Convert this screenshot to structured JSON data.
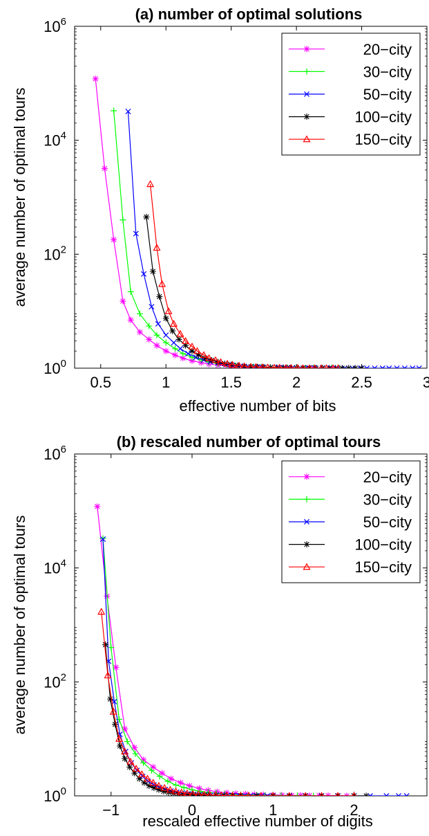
{
  "chart_data": [
    {
      "type": "line",
      "title": "(a) number of optimal solutions",
      "xlabel": "effective number of bits",
      "ylabel": "average number of optimal tours",
      "xlim": [
        0.3,
        3.0
      ],
      "ylim": [
        1,
        1000000
      ],
      "yscale": "log",
      "xticks": [
        "0.5",
        "1",
        "1.5",
        "2",
        "2.5",
        "3"
      ],
      "xtick_values": [
        0.5,
        1,
        1.5,
        2,
        2.5,
        3
      ],
      "yticks": [
        {
          "base": "10",
          "exp": "0",
          "value": 1
        },
        {
          "base": "10",
          "exp": "2",
          "value": 100
        },
        {
          "base": "10",
          "exp": "4",
          "value": 10000
        },
        {
          "base": "10",
          "exp": "6",
          "value": 1000000
        }
      ],
      "legend_position": "top-right",
      "series": [
        {
          "name": "20−city",
          "color": "#ff00ff",
          "marker": "asterisk",
          "x": [
            0.46,
            0.53,
            0.6,
            0.67,
            0.73,
            0.8,
            0.87,
            0.93,
            1.0,
            1.07,
            1.13,
            1.2,
            1.27,
            1.33,
            1.4,
            1.47,
            1.53,
            1.6,
            1.67,
            1.73,
            1.8,
            1.87,
            1.93,
            2.0,
            2.07,
            2.13,
            2.2,
            2.27
          ],
          "y": [
            120000,
            3200,
            180,
            15,
            7,
            4.3,
            3.2,
            2.5,
            2.0,
            1.7,
            1.5,
            1.35,
            1.25,
            1.18,
            1.13,
            1.1,
            1.08,
            1.06,
            1.05,
            1.04,
            1.03,
            1.02,
            1.02,
            1.01,
            1.01,
            1.01,
            1.01,
            1.0
          ]
        },
        {
          "name": "30−city",
          "color": "#00ff00",
          "marker": "plus",
          "x": [
            0.6,
            0.67,
            0.73,
            0.8,
            0.87,
            0.93,
            1.0,
            1.07,
            1.13,
            1.2,
            1.27,
            1.33,
            1.4,
            1.47,
            1.53,
            1.6,
            1.67,
            1.73,
            1.8,
            1.87,
            1.93,
            2.0,
            2.07,
            2.13,
            2.2,
            2.27,
            2.33
          ],
          "y": [
            33000,
            400,
            22,
            9,
            5.5,
            3.8,
            2.8,
            2.2,
            1.8,
            1.55,
            1.4,
            1.28,
            1.2,
            1.15,
            1.11,
            1.08,
            1.06,
            1.05,
            1.04,
            1.03,
            1.02,
            1.02,
            1.01,
            1.01,
            1.01,
            1.01,
            1.0
          ]
        },
        {
          "name": "50−city",
          "color": "#0000ff",
          "marker": "x",
          "x": [
            0.71,
            0.77,
            0.83,
            0.89,
            0.94,
            1.0,
            1.06,
            1.11,
            1.17,
            1.23,
            1.29,
            1.34,
            1.4,
            1.46,
            1.51,
            1.57,
            1.63,
            1.69,
            1.74,
            1.8,
            1.86,
            1.91,
            1.97,
            2.03,
            2.09,
            2.14,
            2.2,
            2.26,
            2.31,
            2.37,
            2.43,
            2.49,
            2.54,
            2.6,
            2.66,
            2.71,
            2.77,
            2.83,
            2.89,
            2.94
          ],
          "y": [
            32000,
            230,
            45,
            12,
            6,
            3.8,
            2.8,
            2.2,
            1.8,
            1.55,
            1.4,
            1.3,
            1.22,
            1.16,
            1.12,
            1.09,
            1.07,
            1.05,
            1.04,
            1.03,
            1.03,
            1.02,
            1.02,
            1.01,
            1.01,
            1.01,
            1.01,
            1.0,
            1.0,
            1.0,
            1.0,
            1.0,
            1.0,
            1.0,
            1.0,
            1.0,
            1.0,
            1.0,
            1.0,
            1.0
          ]
        },
        {
          "name": "100−city",
          "color": "#000000",
          "marker": "asterisk",
          "x": [
            0.85,
            0.9,
            0.95,
            1.0,
            1.05,
            1.1,
            1.15,
            1.2,
            1.25,
            1.3,
            1.35,
            1.4,
            1.45,
            1.5,
            1.55,
            1.6,
            1.65,
            1.7,
            1.75,
            1.8,
            1.85,
            1.9,
            1.95,
            2.0,
            2.05,
            2.1,
            2.15,
            2.2,
            2.25,
            2.3,
            2.35,
            2.4,
            2.45,
            2.5
          ],
          "y": [
            450,
            50,
            18,
            7.5,
            4.5,
            3.2,
            2.5,
            2.0,
            1.7,
            1.5,
            1.38,
            1.28,
            1.2,
            1.15,
            1.11,
            1.08,
            1.06,
            1.05,
            1.04,
            1.03,
            1.02,
            1.02,
            1.01,
            1.01,
            1.01,
            1.01,
            1.0,
            1.0,
            1.0,
            1.0,
            1.0,
            1.0,
            1.0,
            1.0
          ]
        },
        {
          "name": "150−city",
          "color": "#ff0000",
          "marker": "triangle",
          "x": [
            0.88,
            0.93,
            0.97,
            1.02,
            1.06,
            1.11,
            1.15,
            1.2,
            1.24,
            1.29,
            1.33,
            1.38,
            1.42,
            1.47,
            1.51,
            1.56,
            1.6,
            1.65,
            1.69,
            1.74,
            1.78,
            1.83,
            1.87,
            1.92,
            1.96,
            2.01,
            2.05,
            2.1,
            2.14,
            2.19,
            2.23,
            2.28,
            2.32
          ],
          "y": [
            1700,
            130,
            30,
            10,
            6,
            4,
            3,
            2.4,
            2,
            1.7,
            1.5,
            1.38,
            1.28,
            1.2,
            1.15,
            1.11,
            1.08,
            1.06,
            1.05,
            1.04,
            1.03,
            1.02,
            1.02,
            1.01,
            1.01,
            1.01,
            1.0,
            1.0,
            1.0,
            1.0,
            1.0,
            1.0,
            1.0
          ]
        }
      ]
    },
    {
      "type": "line",
      "title": "(b) rescaled number of optimal tours",
      "xlabel": "rescaled effective number of digits",
      "ylabel": "average number of optimal tours",
      "xlim": [
        -1.45,
        2.9
      ],
      "ylim": [
        1,
        1000000
      ],
      "yscale": "log",
      "xticks": [
        "−1",
        "0",
        "1",
        "2"
      ],
      "xtick_values": [
        -1,
        0,
        1,
        2
      ],
      "yticks": [
        {
          "base": "10",
          "exp": "0",
          "value": 1
        },
        {
          "base": "10",
          "exp": "2",
          "value": 100
        },
        {
          "base": "10",
          "exp": "4",
          "value": 10000
        },
        {
          "base": "10",
          "exp": "6",
          "value": 1000000
        }
      ],
      "legend_position": "top-right",
      "series": [
        {
          "name": "20−city",
          "color": "#ff00ff",
          "marker": "asterisk",
          "x": [
            -1.17,
            -1.05,
            -0.94,
            -0.83,
            -0.71,
            -0.6,
            -0.48,
            -0.37,
            -0.26,
            -0.14,
            -0.03,
            0.09,
            0.2,
            0.31,
            0.43,
            0.54,
            0.66,
            0.77,
            0.88,
            1.0,
            1.11,
            1.23,
            1.34,
            1.45,
            1.57,
            1.68,
            1.8,
            1.91
          ],
          "y": [
            120000,
            3200,
            180,
            15,
            7,
            4.3,
            3.2,
            2.5,
            2.0,
            1.7,
            1.5,
            1.35,
            1.25,
            1.18,
            1.13,
            1.1,
            1.08,
            1.06,
            1.05,
            1.04,
            1.03,
            1.02,
            1.02,
            1.01,
            1.01,
            1.01,
            1.01,
            1.0
          ]
        },
        {
          "name": "30−city",
          "color": "#00ff00",
          "marker": "plus",
          "x": [
            -1.1,
            -1.0,
            -0.9,
            -0.8,
            -0.7,
            -0.6,
            -0.5,
            -0.4,
            -0.3,
            -0.2,
            -0.1,
            0.0,
            0.1,
            0.2,
            0.3,
            0.4,
            0.5,
            0.6,
            0.7,
            0.8,
            0.9,
            1.0,
            1.1,
            1.2,
            1.3,
            1.4,
            1.5
          ],
          "y": [
            33000,
            400,
            22,
            9,
            5.5,
            3.8,
            2.8,
            2.2,
            1.8,
            1.55,
            1.4,
            1.28,
            1.2,
            1.15,
            1.11,
            1.08,
            1.06,
            1.05,
            1.04,
            1.03,
            1.02,
            1.02,
            1.01,
            1.01,
            1.01,
            1.01,
            1.0
          ]
        },
        {
          "name": "50−city",
          "color": "#0000ff",
          "marker": "x",
          "x": [
            -1.1,
            -1.03,
            -0.96,
            -0.89,
            -0.82,
            -0.75,
            -0.68,
            -0.61,
            -0.54,
            -0.47,
            -0.4,
            -0.33,
            -0.26,
            -0.19,
            -0.12,
            -0.05,
            0.02,
            0.09,
            0.16,
            0.23,
            0.3,
            0.37,
            0.44,
            0.51,
            0.58,
            0.65,
            0.72,
            0.79,
            0.86,
            0.93,
            1.0,
            1.2,
            1.4,
            1.6,
            1.8,
            2.0,
            2.2,
            2.4,
            2.55,
            2.65
          ],
          "y": [
            32000,
            230,
            45,
            12,
            6,
            3.8,
            2.8,
            2.2,
            1.8,
            1.55,
            1.4,
            1.3,
            1.22,
            1.16,
            1.12,
            1.09,
            1.07,
            1.05,
            1.04,
            1.03,
            1.03,
            1.02,
            1.02,
            1.01,
            1.01,
            1.01,
            1.01,
            1.0,
            1.0,
            1.0,
            1.0,
            1.0,
            1.0,
            1.0,
            1.0,
            1.0,
            1.0,
            1.0,
            1.0,
            1.0
          ]
        },
        {
          "name": "100−city",
          "color": "#000000",
          "marker": "asterisk",
          "x": [
            -1.07,
            -1.01,
            -0.95,
            -0.89,
            -0.83,
            -0.77,
            -0.71,
            -0.65,
            -0.59,
            -0.53,
            -0.47,
            -0.41,
            -0.35,
            -0.29,
            -0.23,
            -0.17,
            -0.11,
            -0.05,
            0.01,
            0.07,
            0.13,
            0.2,
            0.3,
            0.4,
            0.5,
            0.6,
            0.8,
            1.0,
            1.2,
            1.4,
            1.6,
            1.8,
            2.0,
            2.15
          ],
          "y": [
            450,
            50,
            18,
            7.5,
            4.5,
            3.2,
            2.5,
            2.0,
            1.7,
            1.5,
            1.38,
            1.28,
            1.2,
            1.15,
            1.11,
            1.08,
            1.06,
            1.05,
            1.04,
            1.03,
            1.02,
            1.02,
            1.01,
            1.01,
            1.01,
            1.01,
            1.0,
            1.0,
            1.0,
            1.0,
            1.0,
            1.0,
            1.0,
            1.0
          ]
        },
        {
          "name": "150−city",
          "color": "#ff0000",
          "marker": "triangle",
          "x": [
            -1.12,
            -1.04,
            -0.97,
            -0.9,
            -0.83,
            -0.76,
            -0.69,
            -0.62,
            -0.55,
            -0.48,
            -0.41,
            -0.34,
            -0.27,
            -0.2,
            -0.13,
            -0.06,
            0.01,
            0.08,
            0.15,
            0.22,
            0.29,
            0.36,
            0.43,
            0.5,
            0.6,
            0.7,
            0.85,
            1.0,
            1.2,
            1.4,
            1.6,
            1.8,
            2.0
          ],
          "y": [
            1700,
            130,
            30,
            10,
            6,
            4,
            3,
            2.4,
            2,
            1.7,
            1.5,
            1.38,
            1.28,
            1.2,
            1.15,
            1.11,
            1.08,
            1.06,
            1.05,
            1.04,
            1.03,
            1.02,
            1.02,
            1.01,
            1.01,
            1.01,
            1.0,
            1.0,
            1.0,
            1.0,
            1.0,
            1.0,
            1.0
          ]
        }
      ]
    }
  ]
}
